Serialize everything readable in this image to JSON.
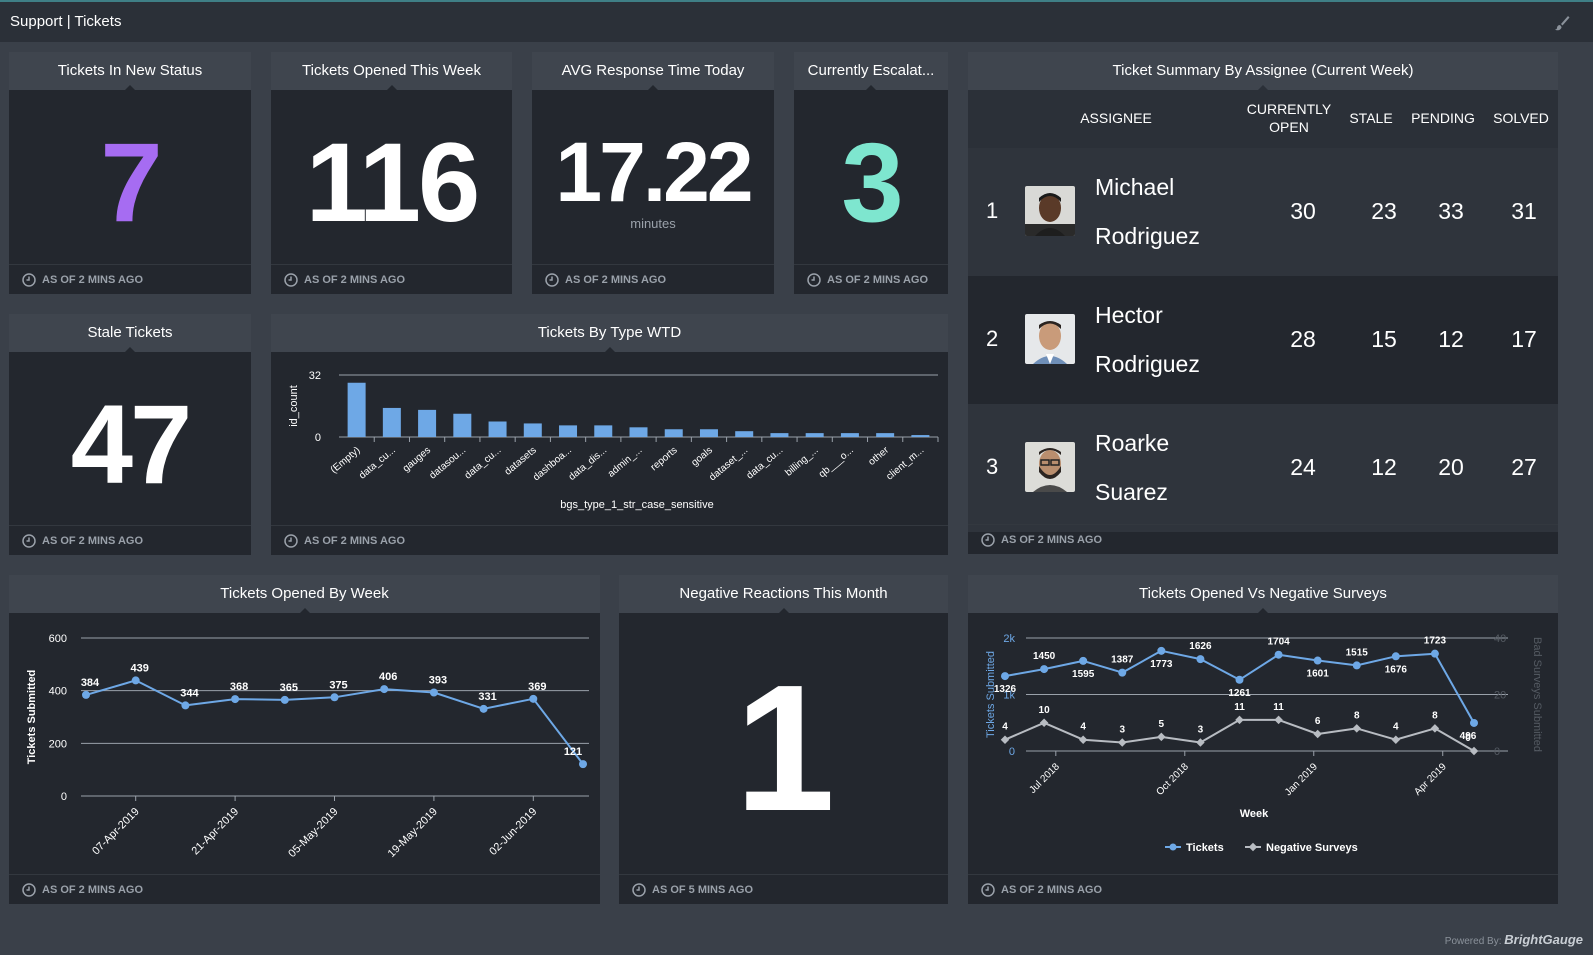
{
  "header": {
    "title": "Support | Tickets"
  },
  "footer_text": "AS OF 2 MINS AGO",
  "footer_text_5": "AS OF 5 MINS AGO",
  "widgets": {
    "new_status": {
      "title": "Tickets In New Status",
      "value": "7",
      "color": "#a66cf2"
    },
    "opened_week": {
      "title": "Tickets Opened This Week",
      "value": "116"
    },
    "avg_response": {
      "title": "AVG Response Time Today",
      "value": "17.22",
      "unit": "minutes"
    },
    "escalated": {
      "title": "Currently Escalat...",
      "value": "3",
      "color": "#7ee6cf"
    },
    "stale": {
      "title": "Stale Tickets",
      "value": "47"
    },
    "negative": {
      "title": "Negative Reactions This Month",
      "value": "1"
    },
    "by_type": {
      "title": "Tickets By Type WTD"
    },
    "by_week": {
      "title": "Tickets Opened By Week"
    },
    "vs_surveys": {
      "title": "Tickets Opened Vs Negative Surveys"
    },
    "assignee": {
      "title": "Ticket Summary By Assignee (Current Week)",
      "columns": {
        "assignee": "ASSIGNEE",
        "open": "CURRENTLY OPEN",
        "stale": "STALE",
        "pending": "PENDING",
        "solved": "SOLVED"
      },
      "rows": [
        {
          "rank": "1",
          "first": "Michael",
          "last": "Rodriguez",
          "open": "30",
          "stale": "23",
          "pending": "33",
          "solved": "31"
        },
        {
          "rank": "2",
          "first": "Hector",
          "last": "Rodriguez",
          "open": "28",
          "stale": "15",
          "pending": "12",
          "solved": "17"
        },
        {
          "rank": "3",
          "first": "Roarke",
          "last": "Suarez",
          "open": "24",
          "stale": "12",
          "pending": "20",
          "solved": "27"
        }
      ]
    }
  },
  "powered": {
    "label": "Powered By:",
    "brand": "BrightGauge"
  },
  "chart_data": [
    {
      "type": "bar",
      "title": "Tickets By Type WTD",
      "xlabel": "bgs_type_1_str_case_sensitive",
      "ylabel": "id_count",
      "ylim": [
        0,
        32
      ],
      "yticks": [
        "32",
        "0"
      ],
      "color": "#6ea8e6",
      "categories": [
        "(Empty)",
        "data_cu...",
        "gauges",
        "datasou...",
        "data_cu...",
        "datasets",
        "dashboa...",
        "data_dis...",
        "admin_...",
        "reports",
        "goals",
        "dataset_...",
        "data_cu...",
        "billing_...",
        "qb___o...",
        "other",
        "client_m..."
      ],
      "values": [
        28,
        15,
        14,
        12,
        8,
        7,
        6,
        6,
        5,
        4,
        4,
        3,
        2,
        2,
        2,
        2,
        1
      ]
    },
    {
      "type": "line",
      "title": "Tickets Opened By Week",
      "ylabel": "Tickets Submitted",
      "ylim": [
        0,
        600
      ],
      "yticks": [
        "600",
        "400",
        "200",
        "0"
      ],
      "xticks": [
        "07-Apr-2019",
        "21-Apr-2019",
        "05-May-2019",
        "19-May-2019",
        "02-Jun-2019"
      ],
      "color": "#6ea8e6",
      "values": [
        384,
        439,
        344,
        368,
        365,
        375,
        406,
        393,
        331,
        369,
        121
      ]
    },
    {
      "type": "line",
      "title": "Tickets Opened Vs Negative Surveys",
      "xlabel": "Week",
      "ylabel": "Tickets Submitted",
      "ylabel_right": "Bad Surveys Submitted",
      "yticks": [
        "2k",
        "1k",
        "0"
      ],
      "yticks_right": [
        "40",
        "20",
        "0"
      ],
      "xticks": [
        "Jul 2018",
        "Oct 2018",
        "Jan 2019",
        "Apr 2019"
      ],
      "series": [
        {
          "name": "Tickets",
          "color": "#6ea8e6",
          "values": [
            1326,
            1450,
            1595,
            1387,
            1773,
            1626,
            1261,
            1704,
            1601,
            1515,
            1676,
            1723,
            496
          ]
        },
        {
          "name": "Negative Surveys",
          "color": "#b8bcc2",
          "values": [
            4,
            10,
            4,
            3,
            5,
            3,
            11,
            11,
            6,
            8,
            4,
            8,
            0
          ]
        }
      ]
    }
  ]
}
